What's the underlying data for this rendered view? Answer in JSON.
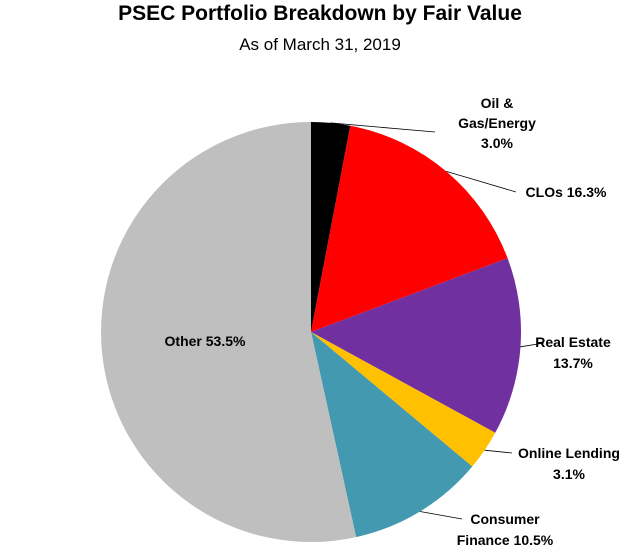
{
  "chart_data": {
    "type": "pie",
    "title": "PSEC Portfolio Breakdown by Fair Value",
    "subtitle": "As of March 31, 2019",
    "slices": [
      {
        "key": "oil",
        "lines": [
          "Oil &",
          "Gas/Energy",
          "3.0%"
        ],
        "value": 3.0,
        "color": "#000000"
      },
      {
        "key": "clos",
        "lines": [
          "CLOs 16.3%"
        ],
        "value": 16.3,
        "color": "#ff0000"
      },
      {
        "key": "real-estate",
        "lines": [
          "Real Estate",
          "13.7%"
        ],
        "value": 13.7,
        "color": "#7030a0"
      },
      {
        "key": "online-lending",
        "lines": [
          "Online Lending",
          "3.1%"
        ],
        "value": 3.1,
        "color": "#ffc000"
      },
      {
        "key": "consumer-finance",
        "lines": [
          "Consumer",
          "Finance 10.5%"
        ],
        "value": 10.5,
        "color": "#4299b0"
      },
      {
        "key": "other",
        "lines": [
          "Other 53.5%"
        ],
        "value": 53.5,
        "color": "#bfbfbf"
      }
    ]
  }
}
